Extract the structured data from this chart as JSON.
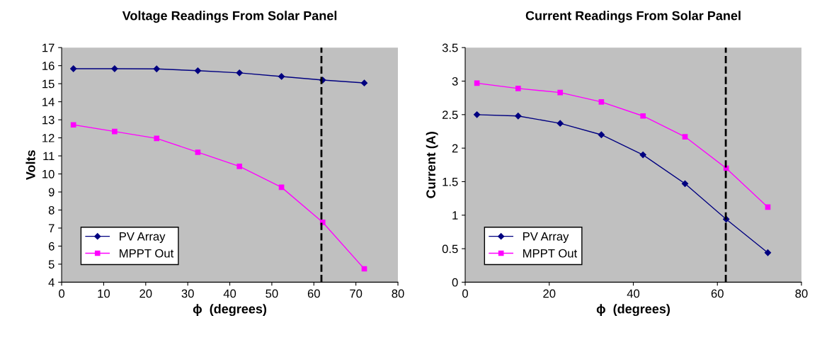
{
  "chart_data": [
    {
      "type": "line",
      "title": "Voltage Readings From Solar Panel",
      "xlabel": "ϕ  (degrees)",
      "ylabel": "Volts",
      "x": [
        2.8,
        12.6,
        22.6,
        32.4,
        42.3,
        52.3,
        62.1,
        72.0
      ],
      "xlim": [
        0,
        80
      ],
      "xticks": [
        0,
        10,
        20,
        30,
        40,
        50,
        60,
        70,
        80
      ],
      "ylim": [
        4,
        17
      ],
      "yticks": [
        4,
        5,
        6,
        7,
        8,
        9,
        10,
        11,
        12,
        13,
        14,
        15,
        16,
        17
      ],
      "grid": false,
      "legend": "bottom left",
      "ref_lines": [
        {
          "axis": "x",
          "value": 61.8,
          "color": "#000000",
          "line_style": "dashed"
        }
      ],
      "series": [
        {
          "name": "PV Array",
          "color": "#000080",
          "marker": "diamond",
          "values": [
            15.83,
            15.83,
            15.82,
            15.72,
            15.6,
            15.4,
            15.2,
            15.04
          ]
        },
        {
          "name": "MPPT Out",
          "color": "#ff00ff",
          "marker": "square",
          "values": [
            12.72,
            12.35,
            11.97,
            11.2,
            10.42,
            9.26,
            7.32,
            4.74
          ]
        }
      ]
    },
    {
      "type": "line",
      "title": "Current Readings From Solar Panel",
      "xlabel": "ϕ  (degrees)",
      "ylabel": "Current (A)",
      "x": [
        2.8,
        12.6,
        22.6,
        32.4,
        42.3,
        52.3,
        62.1,
        72.0
      ],
      "xlim": [
        0,
        80
      ],
      "xticks": [
        0,
        20,
        40,
        60,
        80
      ],
      "ylim": [
        0,
        3.5
      ],
      "yticks": [
        0,
        0.5,
        1,
        1.5,
        2,
        2.5,
        3,
        3.5
      ],
      "grid": false,
      "legend": "bottom left",
      "ref_lines": [
        {
          "axis": "x",
          "value": 62,
          "color": "#000000",
          "line_style": "dashed"
        }
      ],
      "series": [
        {
          "name": "PV Array",
          "color": "#000080",
          "marker": "diamond",
          "values": [
            2.5,
            2.48,
            2.37,
            2.2,
            1.9,
            1.47,
            0.94,
            0.44
          ]
        },
        {
          "name": "MPPT Out",
          "color": "#ff00ff",
          "marker": "square",
          "values": [
            2.97,
            2.89,
            2.83,
            2.69,
            2.48,
            2.17,
            1.7,
            1.12
          ]
        }
      ]
    }
  ]
}
